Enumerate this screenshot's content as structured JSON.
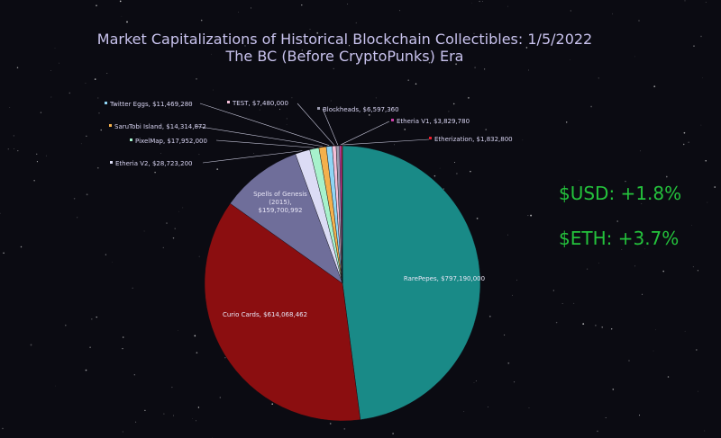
{
  "header": {
    "title_line1": "Market Capitalizations of Historical Blockchain Collectibles: 1/5/2022",
    "title_line2": "The BC (Before CryptoPunks) Era"
  },
  "stats": {
    "usd_change": "$USD: +1.8%",
    "eth_change": "$ETH: +3.7%"
  },
  "chart_data": {
    "type": "pie",
    "slices": [
      {
        "label": "RarePepes",
        "value": 797190000,
        "display": "RarePepes, $797,190,000",
        "color": "#198a87"
      },
      {
        "label": "Curio Cards",
        "value": 614068462,
        "display": "Curio Cards, $614,068,462",
        "color": "#8b0e10"
      },
      {
        "label": "Spells of Genesis (2015)",
        "value": 159700992,
        "display": "Spells of Genesis (2015), $159,700,992",
        "display_lines": [
          "Spells of Genesis",
          "(2015),",
          "$159,700,992"
        ],
        "color": "#6f6e9a"
      },
      {
        "label": "Etheria V2",
        "value": 28723200,
        "display": "Etheria V2, $28,723,200",
        "color": "#dcdcf5"
      },
      {
        "label": "PixelMap",
        "value": 17952000,
        "display": "PixelMap, $17,952,000",
        "color": "#a7f2cc"
      },
      {
        "label": "SaruTobi Island",
        "value": 14314872,
        "display": "SaruTobi Island, $14,314,872",
        "color": "#f4b04c"
      },
      {
        "label": "Twitter Eggs",
        "value": 11469280,
        "display": "Twitter Eggs, $11,469,280",
        "color": "#8fd5f5"
      },
      {
        "label": "TEST",
        "value": 7480000,
        "display": "TEST, $7,480,000",
        "color": "#f5c0d8"
      },
      {
        "label": "Blockheads",
        "value": 6597360,
        "display": "Blockheads, $6,597,360",
        "color": "#9a9aae"
      },
      {
        "label": "Etheria V1",
        "value": 3829780,
        "display": "Etheria V1, $3,829,780",
        "color": "#cc3fa8"
      },
      {
        "label": "Etherization",
        "value": 1832800,
        "display": "Etherization, $1,832,800",
        "color": "#e81e2e"
      }
    ]
  }
}
